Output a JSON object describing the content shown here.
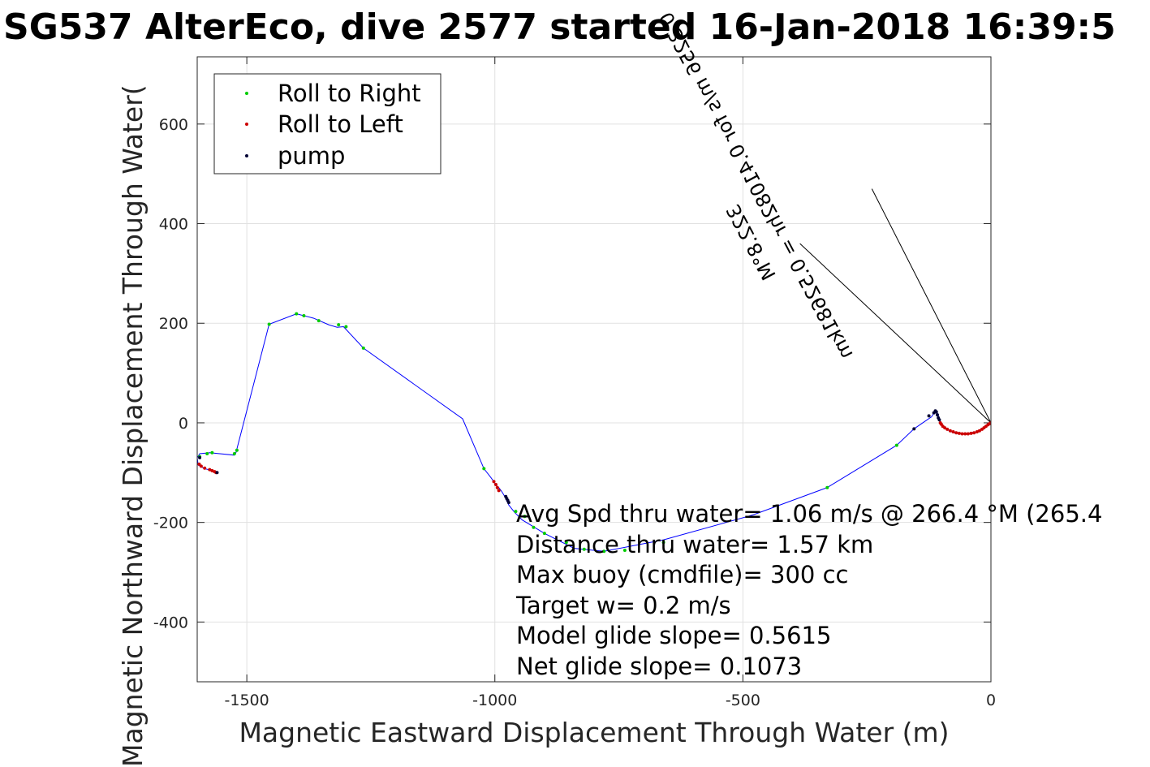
{
  "chart_data": {
    "type": "scatter",
    "title": "SG537 AlterEco, dive 2577 started 16-Jan-2018 16:39:5",
    "xlabel": "Magnetic Eastward Displacement Through Water (m)",
    "ylabel": "Magnetic Northward Displacement Through Water(",
    "xlim": [
      -1600,
      0
    ],
    "ylim": [
      -520,
      735
    ],
    "xticks": [
      -1500,
      -1000,
      -500,
      0
    ],
    "xtick_labels": [
      "-1500",
      "-1000",
      "-500",
      "0"
    ],
    "yticks": [
      -400,
      -200,
      0,
      200,
      400,
      600
    ],
    "ytick_labels": [
      "-400",
      "-200",
      "0",
      "200",
      "400",
      "600"
    ],
    "grid": true,
    "legend_position": "top-left",
    "legend": [
      "Roll to Right",
      "Roll to Left",
      "pump"
    ],
    "colors": {
      "track": "#0000ff",
      "roll_right": "#00cc00",
      "roll_left": "#cc0000",
      "pump": "#000033",
      "current": "#000000",
      "current_text_overlay": "#cc00cc"
    },
    "track": {
      "x": [
        0,
        -8,
        -18,
        -30,
        -45,
        -60,
        -75,
        -88,
        -98,
        -104,
        -106,
        -110,
        -112,
        -120,
        -155,
        -190,
        -330,
        -480,
        -660,
        -780,
        -840,
        -900,
        -945,
        -960,
        -972,
        -980,
        -986,
        -992,
        -998,
        -1002,
        -1008,
        -1022,
        -1065,
        -1265,
        -1305,
        -1318,
        -1335,
        -1365,
        -1400,
        -1455,
        -1522,
        -1525,
        -1575,
        -1595,
        -1600,
        -1598,
        -1585,
        -1570,
        -1562
      ],
      "y": [
        0,
        -5,
        -12,
        -18,
        -21,
        -22,
        -20,
        -14,
        -6,
        6,
        14,
        23,
        24,
        12,
        -12,
        -45,
        -130,
        -185,
        -235,
        -258,
        -252,
        -222,
        -195,
        -180,
        -165,
        -148,
        -138,
        -130,
        -125,
        -118,
        -110,
        -92,
        8,
        150,
        193,
        192,
        197,
        210,
        219,
        198,
        -60,
        -65,
        -60,
        -62,
        -70,
        -85,
        -92,
        -96,
        -100
      ]
    },
    "roll_right": {
      "x": [
        -1520,
        -1525,
        -1570,
        -1580,
        -1595,
        -1455,
        -1400,
        -1385,
        -1355,
        -1315,
        -1300,
        -1265,
        -1022,
        -958,
        -940,
        -922,
        -900,
        -856,
        -820,
        -780,
        -738,
        -660,
        -330,
        -190
      ],
      "y": [
        -55,
        -62,
        -60,
        -62,
        -68,
        198,
        219,
        215,
        205,
        197,
        193,
        150,
        -92,
        -178,
        -188,
        -210,
        -222,
        -240,
        -254,
        -258,
        -256,
        -240,
        -130,
        -45
      ]
    },
    "roll_left": {
      "x": [
        0,
        -3,
        -6,
        -10,
        -14,
        -18,
        -23,
        -28,
        -34,
        -40,
        -46,
        -52,
        -58,
        -64,
        -70,
        -76,
        -82,
        -88,
        -93,
        -97,
        -100,
        -102,
        -1002,
        -998,
        -995,
        -992,
        -1596,
        -1592,
        -1585,
        -1575,
        -1570,
        -1565,
        -1562
      ],
      "y": [
        0,
        -2,
        -4,
        -7,
        -10,
        -13,
        -16,
        -18,
        -20,
        -21,
        -22,
        -22,
        -22,
        -21,
        -20,
        -18,
        -16,
        -13,
        -10,
        -7,
        -3,
        0,
        -118,
        -124,
        -130,
        -136,
        -83,
        -87,
        -91,
        -94,
        -96,
        -98,
        -100
      ]
    },
    "pump": {
      "x": [
        -104,
        -106,
        -108,
        -110,
        -112,
        -115,
        -125,
        -155,
        -978,
        -976,
        -974,
        -972,
        -1595,
        -1560
      ],
      "y": [
        6,
        10,
        16,
        22,
        24,
        20,
        14,
        -12,
        -148,
        -152,
        -156,
        -160,
        -70,
        -100
      ]
    },
    "current_lines": [
      {
        "x": [
          0,
          -385
        ],
        "y": [
          0,
          360
        ]
      },
      {
        "x": [
          0,
          -240
        ],
        "y": [
          0,
          470
        ]
      }
    ],
    "current_label": "0.3256 m/s for 0.41082hr = 0.52681km",
    "current_label_2": "322.8°M",
    "annotations": [
      "Avg Spd thru water=  1.06 m/s @ 266.4 °M (265.4",
      "Distance thru water=  1.57 km",
      "Max buoy (cmdfile)= 300 cc",
      "Target w= 0.2 m/s",
      "Model glide slope= 0.5615",
      "Net glide slope= 0.1073"
    ]
  }
}
